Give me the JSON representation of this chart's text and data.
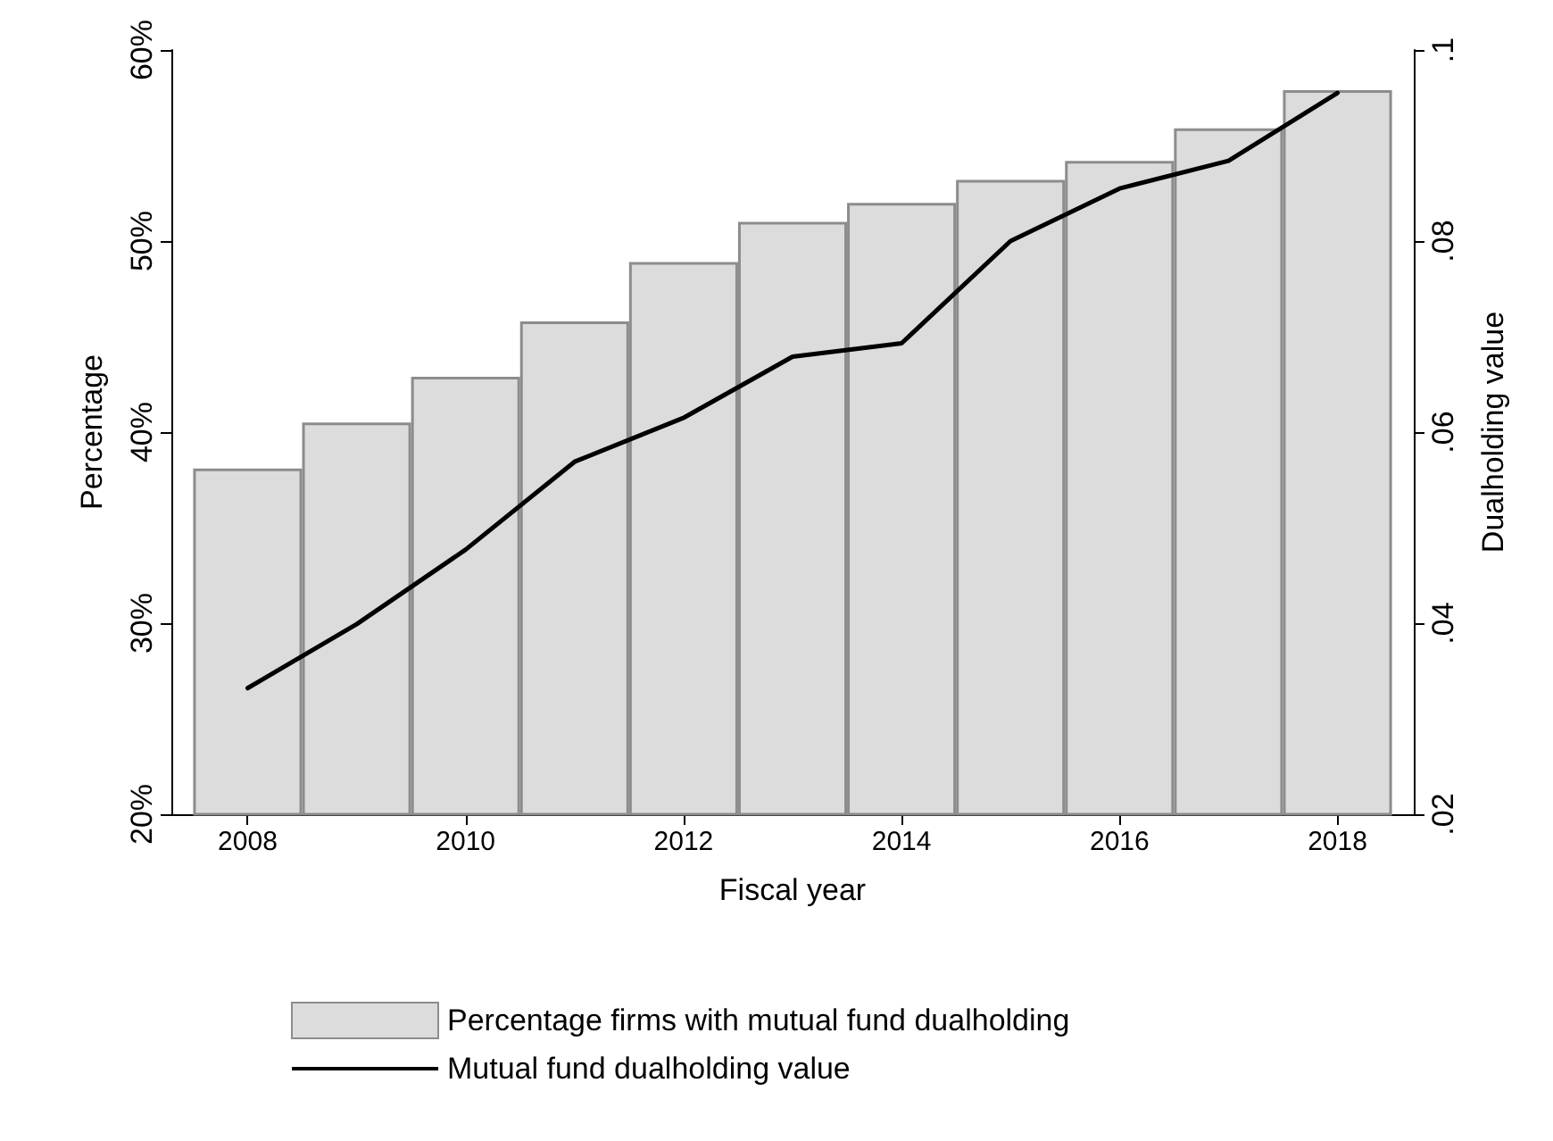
{
  "chart_data": {
    "type": "bar",
    "xlabel": "Fiscal year",
    "ylabel": "Percentage",
    "y2label": "Dualholding value",
    "x": [
      2008,
      2009,
      2010,
      2011,
      2012,
      2013,
      2014,
      2015,
      2016,
      2017,
      2018
    ],
    "series": [
      {
        "name": "Percentage firms with mutual fund dualholding",
        "color": "#dcdcdc",
        "values": [
          38.1,
          40.5,
          42.9,
          45.8,
          48.9,
          51.0,
          52.0,
          53.2,
          54.2,
          55.9,
          57.9
        ]
      },
      {
        "name": "Mutual fund dualholding value",
        "type": "line",
        "axis": "y2",
        "color": "#000000",
        "values": [
          0.0332,
          0.0399,
          0.0477,
          0.0569,
          0.0615,
          0.0679,
          0.0693,
          0.08,
          0.0855,
          0.0884,
          0.0955
        ]
      }
    ],
    "xlim": [
      2007.3,
      2018.7
    ],
    "xticks": [
      2008,
      2010,
      2012,
      2014,
      2016,
      2018
    ],
    "ylim": [
      20,
      60
    ],
    "yticks": [
      {
        "value": 20,
        "label": "20%"
      },
      {
        "value": 30,
        "label": "30%"
      },
      {
        "value": 40,
        "label": "40%"
      },
      {
        "value": 50,
        "label": "50%"
      },
      {
        "value": 60,
        "label": "60%"
      }
    ],
    "y2lim": [
      0.02,
      0.1
    ],
    "y2ticks": [
      {
        "value": 0.02,
        "label": ".02"
      },
      {
        "value": 0.04,
        "label": ".04"
      },
      {
        "value": 0.06,
        "label": ".06"
      },
      {
        "value": 0.08,
        "label": ".08"
      },
      {
        "value": 0.1,
        "label": ".1"
      }
    ],
    "grid": false,
    "legend": "bottom",
    "marker": "none",
    "line_style": "solid"
  }
}
